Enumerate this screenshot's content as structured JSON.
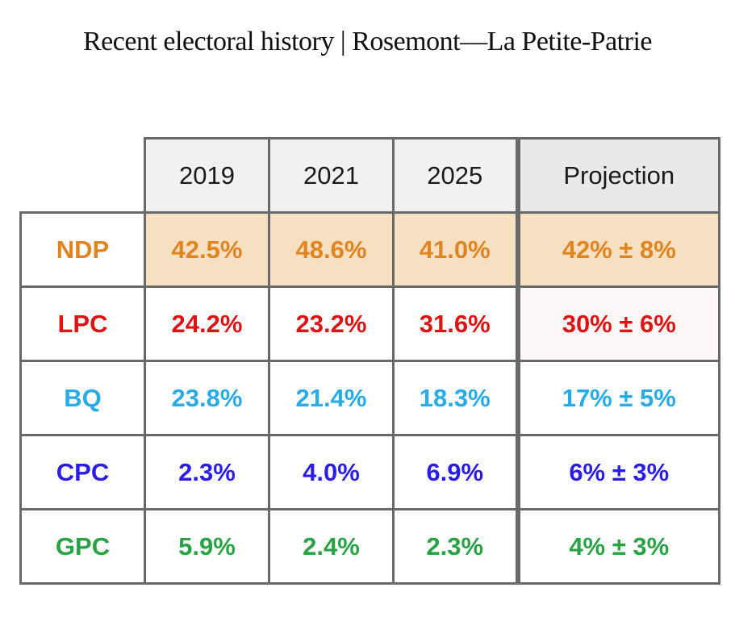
{
  "title": "Recent electoral history | Rosemont—La Petite-Patrie",
  "colors": {
    "border": "#696969",
    "header_bg": "#F1F1F1",
    "projection_header_bg": "#E9E9E9",
    "ndp_row_highlight": "#F7DFC2",
    "lpc_projection_tint": "#FDF7F8"
  },
  "table": {
    "columns": [
      "2019",
      "2021",
      "2025",
      "Projection"
    ],
    "rows": [
      {
        "party": "NDP",
        "color": "#E08420",
        "cell_bg": "#F7DFC2",
        "projection_bg": "#F7DFC2",
        "values": [
          "42.5%",
          "48.6%",
          "41.0%",
          "42% ± 8%"
        ]
      },
      {
        "party": "LPC",
        "color": "#DC1414",
        "cell_bg": "#FFFFFF",
        "projection_bg": "#FDF7F8",
        "values": [
          "24.2%",
          "23.2%",
          "31.6%",
          "30% ± 6%"
        ]
      },
      {
        "party": "BQ",
        "color": "#29ABE8",
        "cell_bg": "#FFFFFF",
        "projection_bg": "#FFFFFF",
        "values": [
          "23.8%",
          "21.4%",
          "18.3%",
          "17% ± 5%"
        ]
      },
      {
        "party": "CPC",
        "color": "#2A1DE8",
        "cell_bg": "#FFFFFF",
        "projection_bg": "#FFFFFF",
        "values": [
          "2.3%",
          "4.0%",
          "6.9%",
          "6% ± 3%"
        ]
      },
      {
        "party": "GPC",
        "color": "#28A245",
        "cell_bg": "#FFFFFF",
        "projection_bg": "#FFFFFF",
        "values": [
          "5.9%",
          "2.4%",
          "2.3%",
          "4% ± 3%"
        ]
      }
    ]
  },
  "chart_data": {
    "type": "table",
    "title": "Recent electoral history | Rosemont—La Petite-Patrie",
    "columns": [
      "2019",
      "2021",
      "2025",
      "Projection"
    ],
    "rows": [
      {
        "party": "NDP",
        "values": [
          "42.5%",
          "48.6%",
          "41.0%",
          "42% ± 8%"
        ]
      },
      {
        "party": "LPC",
        "values": [
          "24.2%",
          "23.2%",
          "31.6%",
          "30% ± 6%"
        ]
      },
      {
        "party": "BQ",
        "values": [
          "23.8%",
          "21.4%",
          "18.3%",
          "17% ± 5%"
        ]
      },
      {
        "party": "CPC",
        "values": [
          "2.3%",
          "4.0%",
          "6.9%",
          "6% ± 3%"
        ]
      },
      {
        "party": "GPC",
        "values": [
          "5.9%",
          "2.4%",
          "2.3%",
          "4% ± 3%"
        ]
      }
    ],
    "notes": "NDP row cells highlighted peach; projection column separated by thicker border"
  }
}
